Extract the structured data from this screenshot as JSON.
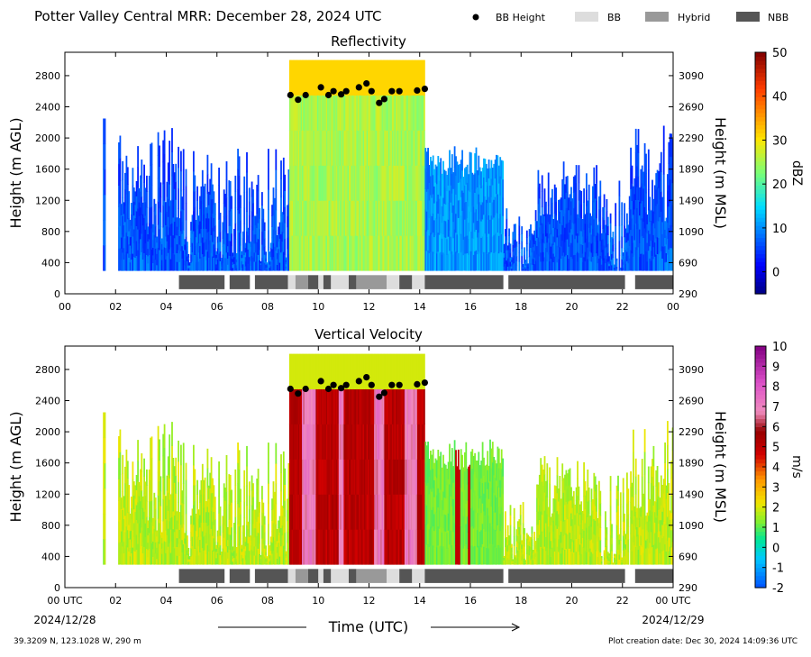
{
  "header": {
    "title": "Potter Valley Central MRR:  December 28, 2024 UTC"
  },
  "legend": [
    {
      "label": "BB Height",
      "kind": "dot",
      "color": "#000000"
    },
    {
      "label": "BB",
      "kind": "box",
      "color": "#dddddd"
    },
    {
      "label": "Hybrid",
      "kind": "box",
      "color": "#999999"
    },
    {
      "label": "NBB",
      "kind": "box",
      "color": "#555555"
    }
  ],
  "footer": {
    "location": "39.3209 N, 123.1028 W, 290 m",
    "created": "Plot creation date: Dec 30, 2024 14:09:36 UTC",
    "xlabel": "Time (UTC)",
    "date_start": "2024/12/28",
    "date_end": "2024/12/29"
  },
  "chart_data": [
    {
      "type": "heatmap",
      "title": "Reflectivity",
      "xlabel": "",
      "ylabel": "Height (m AGL)",
      "ylabel_right": "Height (m MSL)",
      "x_ticks": [
        "00",
        "02",
        "04",
        "06",
        "08",
        "10",
        "12",
        "14",
        "16",
        "18",
        "20",
        "22",
        "00"
      ],
      "y_ticks": [
        0,
        400,
        800,
        1200,
        1600,
        2000,
        2400,
        2800
      ],
      "y_ticks_right": [
        290,
        690,
        1090,
        1490,
        1890,
        2290,
        2690,
        3090
      ],
      "xlim_hours": [
        0,
        24
      ],
      "ylim": [
        0,
        3100
      ],
      "colorbar": {
        "label": "dBZ",
        "min": -5,
        "max": 50,
        "ticks": [
          0,
          10,
          20,
          30,
          40,
          50
        ]
      },
      "bb_height": [
        {
          "t": 8.9,
          "h": 2550
        },
        {
          "t": 9.2,
          "h": 2490
        },
        {
          "t": 9.5,
          "h": 2550
        },
        {
          "t": 10.1,
          "h": 2650
        },
        {
          "t": 10.4,
          "h": 2550
        },
        {
          "t": 10.6,
          "h": 2600
        },
        {
          "t": 10.9,
          "h": 2560
        },
        {
          "t": 11.1,
          "h": 2600
        },
        {
          "t": 11.6,
          "h": 2650
        },
        {
          "t": 11.9,
          "h": 2700
        },
        {
          "t": 12.1,
          "h": 2600
        },
        {
          "t": 12.4,
          "h": 2450
        },
        {
          "t": 12.6,
          "h": 2500
        },
        {
          "t": 12.9,
          "h": 2600
        },
        {
          "t": 13.2,
          "h": 2600
        },
        {
          "t": 13.9,
          "h": 2610
        },
        {
          "t": 14.2,
          "h": 2630
        }
      ]
    },
    {
      "type": "heatmap",
      "title": "Vertical Velocity",
      "xlabel": "Time (UTC)",
      "ylabel": "Height (m AGL)",
      "ylabel_right": "Height (m MSL)",
      "x_ticks": [
        "00 UTC",
        "02",
        "04",
        "06",
        "08",
        "10",
        "12",
        "14",
        "16",
        "18",
        "20",
        "22",
        "00 UTC"
      ],
      "y_ticks": [
        0,
        400,
        800,
        1200,
        1600,
        2000,
        2400,
        2800
      ],
      "y_ticks_right": [
        290,
        690,
        1090,
        1490,
        1890,
        2290,
        2690,
        3090
      ],
      "xlim_hours": [
        0,
        24
      ],
      "ylim": [
        0,
        3100
      ],
      "colorbar": {
        "label": "m/s",
        "min": -2,
        "max": 10,
        "ticks": [
          -2,
          -1,
          0,
          1,
          2,
          3,
          4,
          5,
          6,
          7,
          8,
          9,
          10
        ]
      },
      "bb_height": [
        {
          "t": 8.9,
          "h": 2550
        },
        {
          "t": 9.2,
          "h": 2490
        },
        {
          "t": 9.5,
          "h": 2550
        },
        {
          "t": 10.1,
          "h": 2650
        },
        {
          "t": 10.4,
          "h": 2550
        },
        {
          "t": 10.6,
          "h": 2600
        },
        {
          "t": 10.9,
          "h": 2560
        },
        {
          "t": 11.1,
          "h": 2600
        },
        {
          "t": 11.6,
          "h": 2650
        },
        {
          "t": 11.9,
          "h": 2700
        },
        {
          "t": 12.1,
          "h": 2600
        },
        {
          "t": 12.4,
          "h": 2450
        },
        {
          "t": 12.6,
          "h": 2500
        },
        {
          "t": 12.9,
          "h": 2600
        },
        {
          "t": 13.2,
          "h": 2600
        },
        {
          "t": 13.9,
          "h": 2610
        },
        {
          "t": 14.2,
          "h": 2630
        }
      ]
    }
  ],
  "bb_type_segments": [
    {
      "start": 4.5,
      "end": 6.3,
      "type": "NBB"
    },
    {
      "start": 6.5,
      "end": 7.3,
      "type": "NBB"
    },
    {
      "start": 7.5,
      "end": 8.8,
      "type": "NBB"
    },
    {
      "start": 8.8,
      "end": 9.1,
      "type": "BB"
    },
    {
      "start": 9.1,
      "end": 9.6,
      "type": "Hybrid"
    },
    {
      "start": 9.6,
      "end": 10.0,
      "type": "NBB"
    },
    {
      "start": 10.0,
      "end": 10.2,
      "type": "BB"
    },
    {
      "start": 10.2,
      "end": 10.5,
      "type": "NBB"
    },
    {
      "start": 10.5,
      "end": 11.2,
      "type": "BB"
    },
    {
      "start": 11.2,
      "end": 11.5,
      "type": "NBB"
    },
    {
      "start": 11.5,
      "end": 12.7,
      "type": "Hybrid"
    },
    {
      "start": 12.7,
      "end": 13.2,
      "type": "BB"
    },
    {
      "start": 13.2,
      "end": 13.7,
      "type": "NBB"
    },
    {
      "start": 13.7,
      "end": 14.2,
      "type": "BB"
    },
    {
      "start": 14.2,
      "end": 17.3,
      "type": "NBB"
    },
    {
      "start": 17.5,
      "end": 22.1,
      "type": "NBB"
    },
    {
      "start": 22.5,
      "end": 24.0,
      "type": "NBB"
    }
  ]
}
